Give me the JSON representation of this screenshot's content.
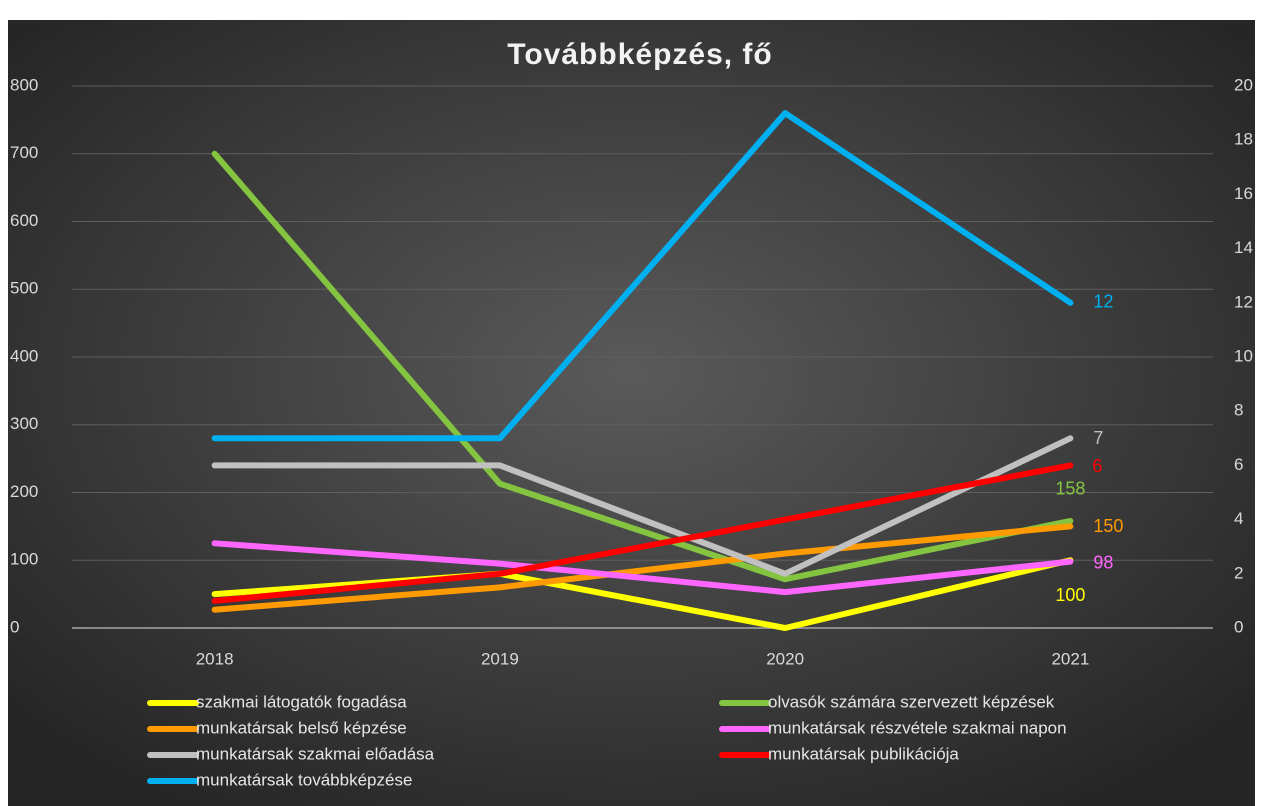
{
  "chart_data": {
    "type": "line",
    "title": "Továbbképzés, fő",
    "categories": [
      "2018",
      "2019",
      "2020",
      "2021"
    ],
    "ylim": [
      0,
      800
    ],
    "yticks": [
      0,
      100,
      200,
      300,
      400,
      500,
      600,
      700,
      800
    ],
    "y2lim": [
      0,
      20
    ],
    "y2ticks": [
      0,
      2,
      4,
      6,
      8,
      10,
      12,
      14,
      16,
      18,
      20
    ],
    "grid": true,
    "series": [
      {
        "name": "szakmai látogatók fogadása",
        "color": "#ffff00",
        "values": [
          50,
          80,
          0,
          100
        ]
      },
      {
        "name": "olvasók számára szervezett képzések",
        "color": "#84c441",
        "values": [
          700,
          213,
          72,
          158
        ]
      },
      {
        "name": "munkatársak belső képzése",
        "color": "#ff9a00",
        "values": [
          27,
          60,
          110,
          150
        ]
      },
      {
        "name": "munkatársak részvétele szakmai napon",
        "color": "#ff66ff",
        "values": [
          125,
          95,
          53,
          98
        ]
      },
      {
        "name": "munkatársak szakmai előadása",
        "color": "#c0c0c0",
        "axis": "y2",
        "values": [
          6,
          6,
          2,
          7
        ]
      },
      {
        "name": "munkatársak publikációja",
        "color": "#ff0000",
        "axis": "y2",
        "values": [
          1,
          2,
          4,
          6
        ]
      },
      {
        "name": "munkatársak továbbképzése",
        "color": "#00b0f0",
        "axis": "y2",
        "values": [
          7,
          7,
          19,
          12
        ]
      }
    ]
  }
}
